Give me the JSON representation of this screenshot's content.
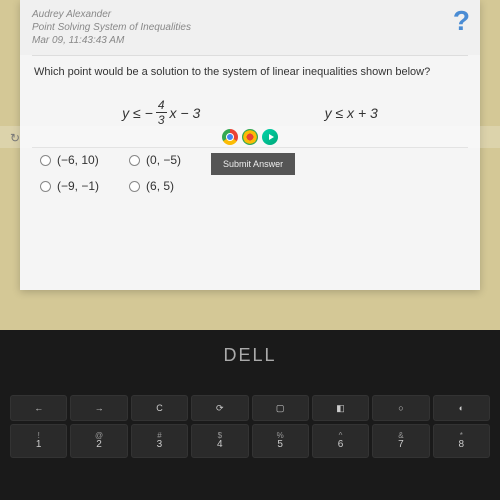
{
  "header": {
    "student_name": "Audrey Alexander",
    "assignment": "Point Solving System of Inequalities",
    "timestamp": "Mar 09, 11:43:43 AM",
    "help_icon": "?"
  },
  "question": {
    "text": "Which point would be a solution to the system of linear inequalities shown below?",
    "eq1_left": "y ≤ −",
    "eq1_num": "4",
    "eq1_den": "3",
    "eq1_right": "x − 3",
    "eq2": "y ≤ x + 3"
  },
  "options": {
    "a": "(−6, 10)",
    "b": "(0, −5)",
    "c": "(−9, −1)",
    "d": "(6, 5)"
  },
  "submit_label": "Submit Answer",
  "branding": {
    "logo": "DELL"
  },
  "keys": {
    "r1": [
      "←",
      "→",
      "C",
      "⟳",
      "▢",
      "◧",
      "○",
      "◐"
    ],
    "r2s": [
      "!",
      "@",
      "#",
      "$",
      "%",
      "^",
      "&",
      "*"
    ],
    "r2n": [
      "1",
      "2",
      "3",
      "4",
      "5",
      "6",
      "7",
      "8"
    ]
  },
  "colors": {
    "bezel": "#1a1a1a",
    "desktop": "#d4c896",
    "window": "#f5f5f5",
    "submit": "#555555",
    "help": "#4a8cd4"
  }
}
